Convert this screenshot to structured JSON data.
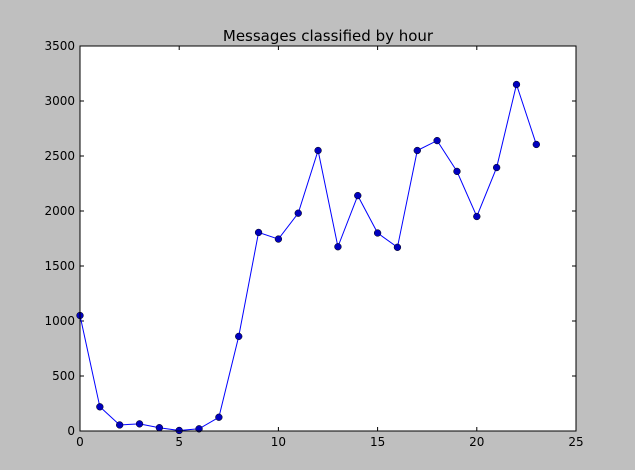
{
  "colors": {
    "figure_background": "#bfbfbf",
    "plot_background": "#ffffff",
    "series_line": "#0000ff",
    "marker_fill": "#0000bf",
    "axis": "#000000"
  },
  "chart_data": {
    "type": "line",
    "title": "Messages classified by hour",
    "xlabel": "",
    "ylabel": "",
    "xlim": [
      0,
      25
    ],
    "ylim": [
      0,
      3500
    ],
    "xticks": [
      0,
      5,
      10,
      15,
      20,
      25
    ],
    "yticks": [
      0,
      500,
      1000,
      1500,
      2000,
      2500,
      3000,
      3500
    ],
    "grid": false,
    "legend": "none",
    "marker": "circle",
    "x": [
      0,
      1,
      2,
      3,
      4,
      5,
      6,
      7,
      8,
      9,
      10,
      11,
      12,
      13,
      14,
      15,
      16,
      17,
      18,
      19,
      20,
      21,
      22,
      23
    ],
    "series": [
      {
        "values": [
          1050,
          220,
          55,
          65,
          30,
          5,
          20,
          125,
          860,
          1805,
          1745,
          1980,
          2550,
          1675,
          2140,
          1800,
          1670,
          2550,
          2640,
          2360,
          1950,
          2395,
          3150,
          2605
        ]
      }
    ]
  }
}
